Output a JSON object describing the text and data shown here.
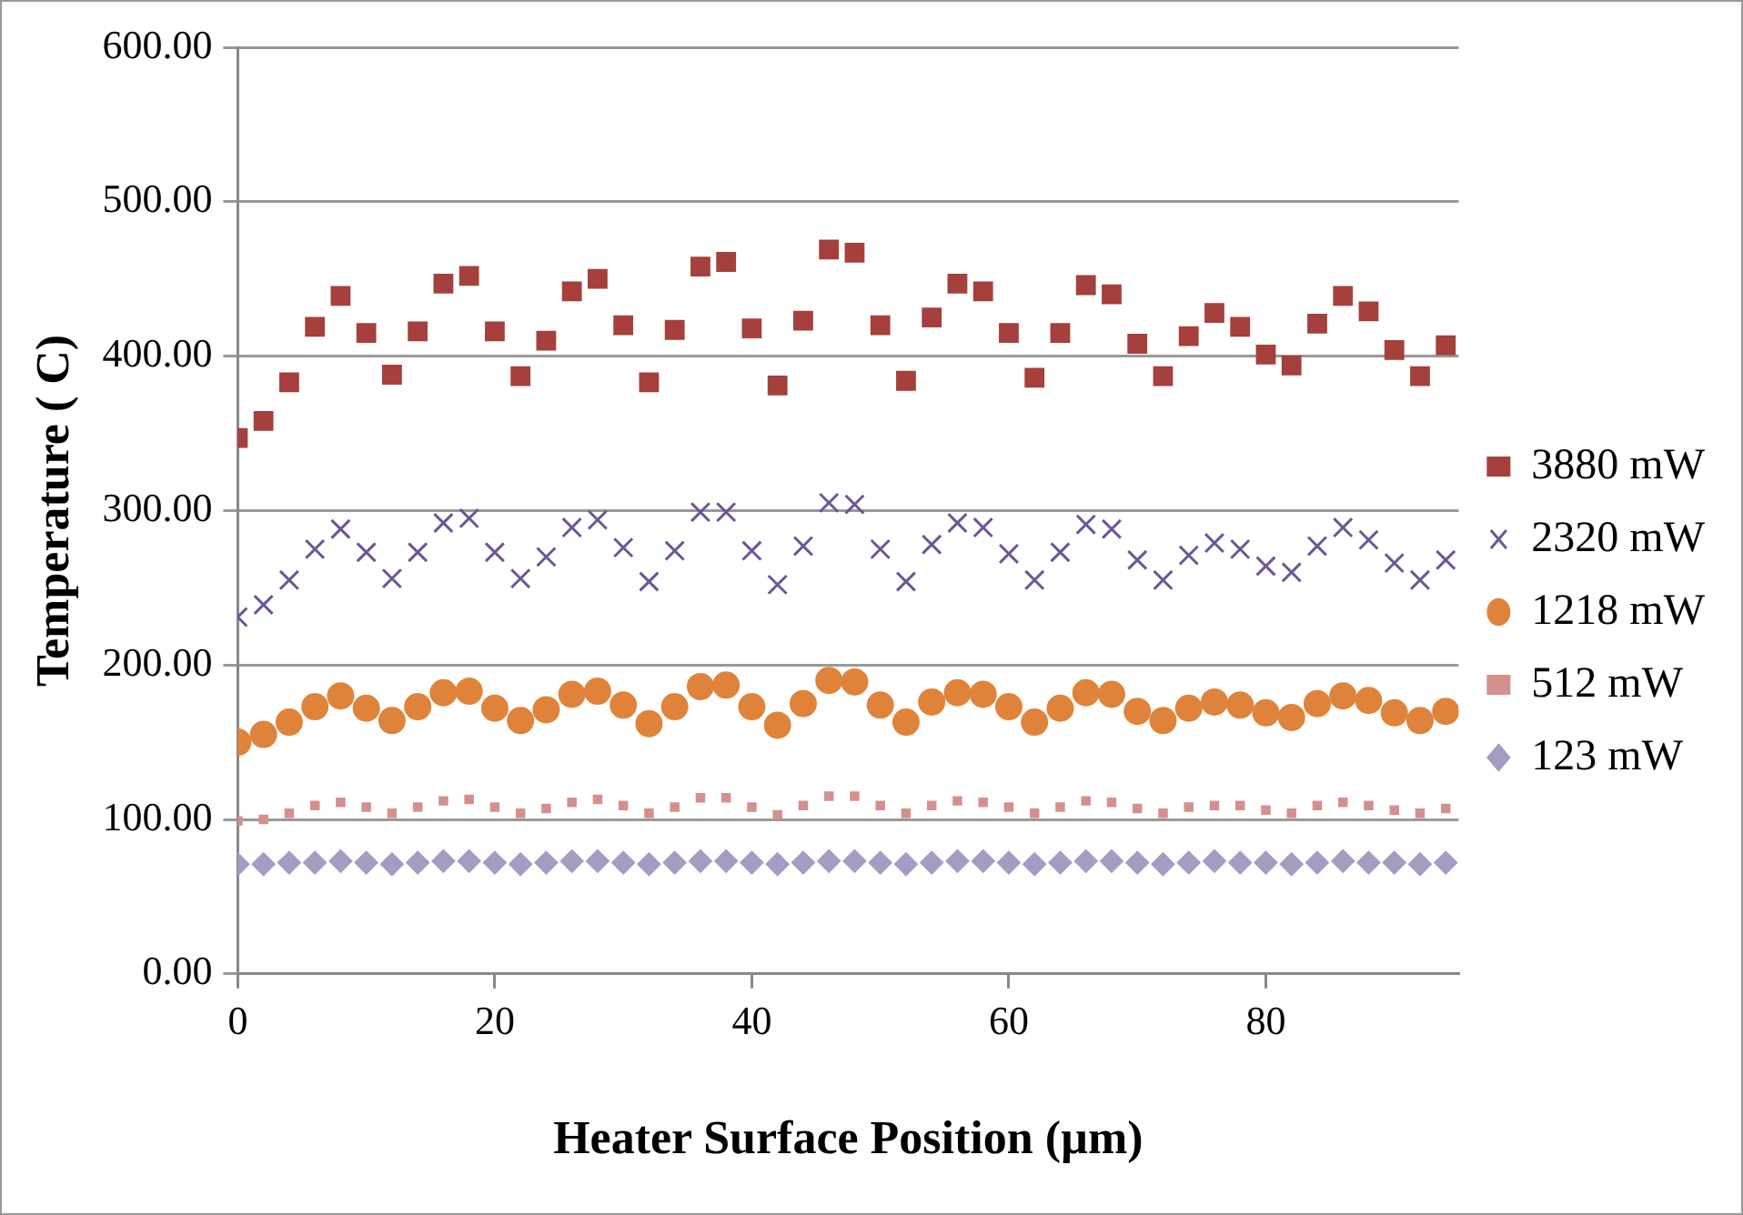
{
  "chart_data": {
    "type": "scatter",
    "xlabel": "Heater Surface Position (µm)",
    "ylabel": "Temperature ( C)",
    "x": [
      0,
      2,
      4,
      6,
      8,
      10,
      12,
      14,
      16,
      18,
      20,
      22,
      24,
      26,
      28,
      30,
      32,
      34,
      36,
      38,
      40,
      42,
      44,
      46,
      48,
      50,
      52,
      54,
      56,
      58,
      60,
      62,
      64,
      66,
      68,
      70,
      72,
      74,
      76,
      78,
      80,
      82,
      84,
      86,
      88,
      90,
      92,
      94
    ],
    "xlim": [
      0,
      95
    ],
    "xticks": [
      0,
      20,
      40,
      60,
      80
    ],
    "ylim": [
      0,
      600
    ],
    "yticks": [
      {
        "value": 0,
        "label": "0.00"
      },
      {
        "value": 100,
        "label": "100.00"
      },
      {
        "value": 200,
        "label": "200.00"
      },
      {
        "value": 300,
        "label": "300.00"
      },
      {
        "value": 400,
        "label": "400.00"
      },
      {
        "value": 500,
        "label": "500.00"
      },
      {
        "value": 600,
        "label": "600.00"
      }
    ],
    "grid": "y",
    "legend": "right",
    "series": [
      {
        "name": "3880 mW",
        "color": "#a5403c",
        "marker": "square",
        "values": [
          347,
          358,
          383,
          419,
          439,
          415,
          388,
          416,
          447,
          452,
          416,
          387,
          410,
          442,
          450,
          420,
          383,
          417,
          458,
          461,
          418,
          381,
          423,
          469,
          467,
          420,
          384,
          425,
          447,
          442,
          415,
          386,
          415,
          446,
          440,
          408,
          387,
          413,
          428,
          419,
          401,
          394,
          421,
          439,
          429,
          404,
          387,
          407
        ]
      },
      {
        "name": "2320 mW",
        "color": "#6f5596",
        "marker": "cross",
        "values": [
          231,
          239,
          255,
          275,
          288,
          273,
          256,
          273,
          292,
          295,
          273,
          256,
          270,
          289,
          294,
          276,
          254,
          274,
          299,
          299,
          274,
          252,
          277,
          305,
          304,
          275,
          254,
          278,
          292,
          289,
          272,
          255,
          273,
          291,
          288,
          268,
          255,
          271,
          279,
          275,
          264,
          260,
          277,
          289,
          281,
          266,
          255,
          268
        ]
      },
      {
        "name": "1218 mW",
        "color": "#e0833a",
        "marker": "circle",
        "values": [
          150,
          155,
          163,
          173,
          180,
          172,
          164,
          173,
          182,
          183,
          172,
          164,
          171,
          181,
          183,
          174,
          162,
          173,
          186,
          187,
          173,
          161,
          175,
          190,
          189,
          174,
          163,
          176,
          182,
          181,
          173,
          163,
          172,
          182,
          181,
          170,
          164,
          172,
          176,
          174,
          169,
          166,
          175,
          180,
          177,
          169,
          164,
          170
        ]
      },
      {
        "name": "512 mW",
        "color": "#d4908d",
        "marker": "square",
        "values": [
          99,
          100,
          104,
          109,
          111,
          108,
          104,
          108,
          112,
          113,
          108,
          104,
          107,
          111,
          113,
          109,
          104,
          108,
          114,
          114,
          108,
          103,
          109,
          115,
          115,
          109,
          104,
          109,
          112,
          111,
          108,
          104,
          108,
          112,
          111,
          107,
          104,
          108,
          109,
          109,
          106,
          104,
          109,
          111,
          109,
          106,
          104,
          107
        ]
      },
      {
        "name": "123 mW",
        "color": "#a89bc2",
        "marker": "diamond",
        "values": [
          71,
          71,
          72,
          72,
          73,
          72,
          71,
          72,
          73,
          73,
          72,
          71,
          72,
          73,
          73,
          72,
          71,
          72,
          73,
          73,
          72,
          71,
          72,
          73,
          73,
          72,
          71,
          72,
          73,
          73,
          72,
          71,
          72,
          73,
          73,
          72,
          71,
          72,
          73,
          72,
          72,
          71,
          72,
          73,
          72,
          72,
          71,
          72
        ]
      }
    ]
  }
}
